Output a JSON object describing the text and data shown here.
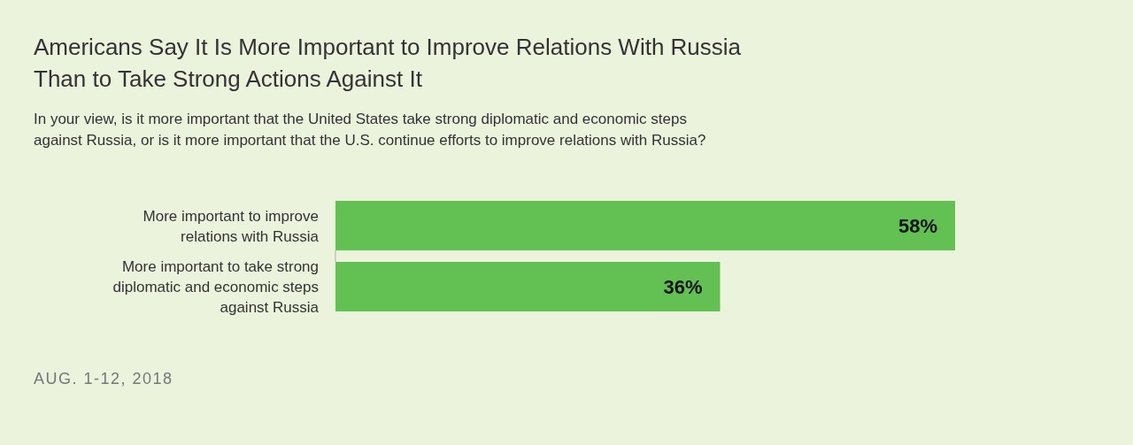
{
  "chart_data": {
    "type": "bar",
    "orientation": "horizontal",
    "title": "Americans Say It Is More Important to Improve Relations With Russia Than to Take Strong Actions Against It",
    "subtitle": "In your view, is it more important that the United States take strong diplomatic and economic steps against Russia, or is it more important that the U.S. continue efforts to improve relations with Russia?",
    "categories": [
      "More important to improve relations with Russia",
      "More important to take strong diplomatic and economic steps against Russia"
    ],
    "values": [
      58,
      36
    ],
    "color": "#63c153",
    "data_labels": true,
    "value_labels": [
      "58%",
      "36%"
    ],
    "annotations": [
      "AUG. 1-12, 2018"
    ]
  }
}
